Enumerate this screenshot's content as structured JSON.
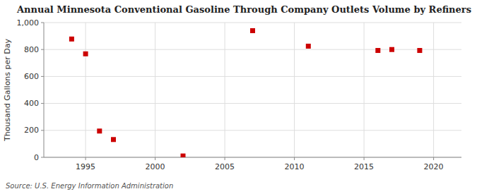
{
  "chart_data": {
    "type": "scatter",
    "title": "Annual Minnesota Conventional Gasoline Through Company Outlets Volume by Refiners",
    "ylabel": "Thousand Gallons per Day",
    "annotation": "Source: U.S. Energy Information Administration",
    "x": [
      1994,
      1995,
      1996,
      1997,
      2002,
      2007,
      2011,
      2016,
      2017,
      2019
    ],
    "values": [
      878,
      768,
      195,
      132,
      10,
      940,
      825,
      793,
      800,
      793
    ],
    "color": "#cc0000",
    "marker": "square",
    "xlim": [
      1992,
      2022
    ],
    "ylim": [
      0,
      1000
    ],
    "xticks": [
      1995,
      2000,
      2005,
      2010,
      2015,
      2020
    ],
    "yticks": [
      0,
      200,
      400,
      600,
      800,
      {
        "value": 1000,
        "label": "1,000"
      }
    ],
    "grid": true
  }
}
